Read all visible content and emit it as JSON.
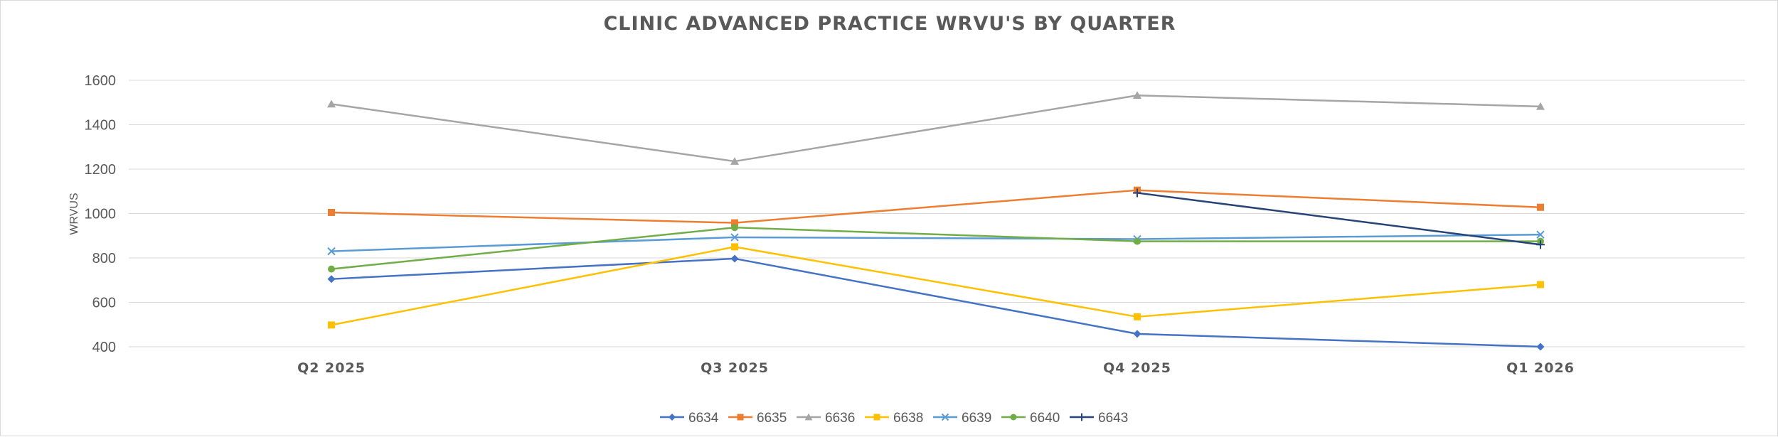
{
  "chart_data": {
    "type": "line",
    "title": "CLINIC ADVANCED PRACTICE WRVU'S BY QUARTER",
    "xlabel": "",
    "ylabel": "WRVUS",
    "categories": [
      "Q2 2025",
      "Q3 2025",
      "Q4 2025",
      "Q1 2026"
    ],
    "ylim": [
      400,
      1600
    ],
    "yticks": [
      400,
      600,
      800,
      1000,
      1200,
      1400,
      1600
    ],
    "grid": true,
    "legend_position": "bottom",
    "series": [
      {
        "name": "6634",
        "color": "#4472C4",
        "marker": "diamond",
        "values": [
          705,
          797,
          458,
          400
        ]
      },
      {
        "name": "6635",
        "color": "#ED7D31",
        "marker": "square",
        "values": [
          1005,
          958,
          1105,
          1028
        ]
      },
      {
        "name": "6636",
        "color": "#A5A5A5",
        "marker": "triangle",
        "values": [
          1493,
          1235,
          1532,
          1482
        ]
      },
      {
        "name": "6638",
        "color": "#FFC000",
        "marker": "square",
        "values": [
          498,
          850,
          535,
          680
        ]
      },
      {
        "name": "6639",
        "color": "#5B9BD5",
        "marker": "x",
        "values": [
          830,
          893,
          885,
          905
        ]
      },
      {
        "name": "6640",
        "color": "#70AD47",
        "marker": "circle",
        "values": [
          750,
          937,
          875,
          875
        ]
      },
      {
        "name": "6643",
        "color": "#264478",
        "marker": "plus",
        "values": [
          null,
          null,
          1093,
          860
        ]
      }
    ]
  }
}
